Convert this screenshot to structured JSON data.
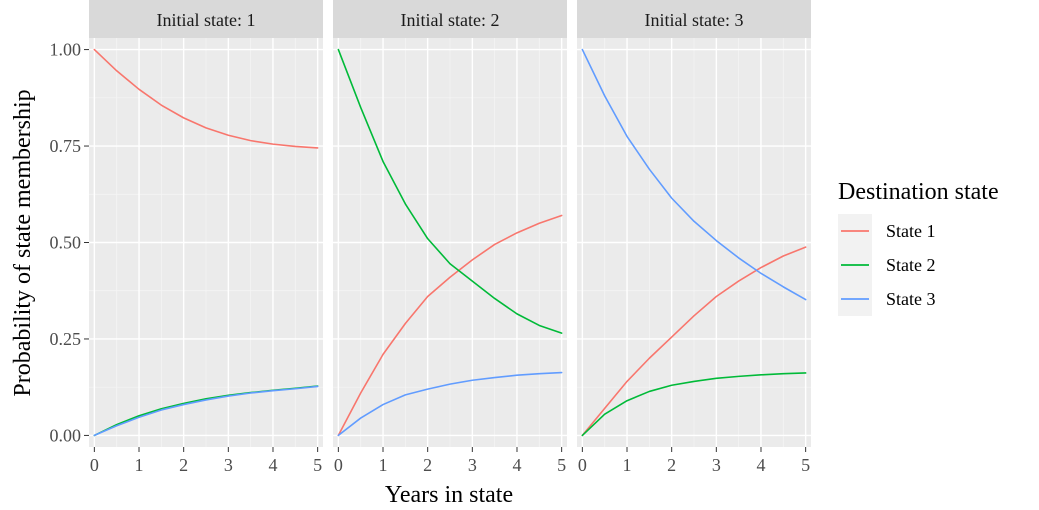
{
  "chart_data": {
    "type": "line",
    "xlabel": "Years in state",
    "ylabel": "Probability of state membership",
    "xlim": [
      -0.12,
      5.12
    ],
    "ylim": [
      -0.03,
      1.03
    ],
    "x_ticks": [
      0,
      1,
      2,
      3,
      4,
      5
    ],
    "y_ticks": [
      0.0,
      0.25,
      0.5,
      0.75,
      1.0
    ],
    "y_tick_labels": [
      "0.00",
      "0.25",
      "0.50",
      "0.75",
      "1.00"
    ],
    "grid": true,
    "legend": {
      "title": "Destination state",
      "position": "right",
      "entries": [
        {
          "name": "State 1",
          "color": "#F8766D"
        },
        {
          "name": "State 2",
          "color": "#00BA38"
        },
        {
          "name": "State 3",
          "color": "#619CFF"
        }
      ]
    },
    "x": [
      0,
      0.5,
      1,
      1.5,
      2,
      2.5,
      3,
      3.5,
      4,
      4.5,
      5
    ],
    "facets": [
      {
        "label": "Initial state: 1",
        "series": [
          {
            "name": "State 1",
            "values": [
              1.0,
              0.945,
              0.897,
              0.856,
              0.823,
              0.797,
              0.778,
              0.764,
              0.755,
              0.749,
              0.745
            ]
          },
          {
            "name": "State 2",
            "values": [
              0.0,
              0.028,
              0.051,
              0.069,
              0.083,
              0.095,
              0.104,
              0.111,
              0.117,
              0.122,
              0.128
            ]
          },
          {
            "name": "State 3",
            "values": [
              0.0,
              0.025,
              0.047,
              0.066,
              0.08,
              0.092,
              0.102,
              0.11,
              0.116,
              0.121,
              0.127
            ]
          }
        ]
      },
      {
        "label": "Initial state: 2",
        "series": [
          {
            "name": "State 1",
            "values": [
              0.0,
              0.11,
              0.21,
              0.29,
              0.36,
              0.41,
              0.455,
              0.495,
              0.525,
              0.55,
              0.57
            ]
          },
          {
            "name": "State 2",
            "values": [
              1.0,
              0.85,
              0.71,
              0.6,
              0.51,
              0.445,
              0.4,
              0.355,
              0.315,
              0.285,
              0.265
            ]
          },
          {
            "name": "State 3",
            "values": [
              0.0,
              0.045,
              0.08,
              0.105,
              0.12,
              0.133,
              0.143,
              0.15,
              0.156,
              0.16,
              0.163
            ]
          }
        ]
      },
      {
        "label": "Initial state: 3",
        "series": [
          {
            "name": "State 1",
            "values": [
              0.0,
              0.07,
              0.14,
              0.2,
              0.255,
              0.31,
              0.36,
              0.4,
              0.435,
              0.465,
              0.488
            ]
          },
          {
            "name": "State 2",
            "values": [
              0.0,
              0.055,
              0.09,
              0.114,
              0.13,
              0.14,
              0.148,
              0.153,
              0.157,
              0.16,
              0.162
            ]
          },
          {
            "name": "State 3",
            "values": [
              1.0,
              0.88,
              0.775,
              0.69,
              0.615,
              0.555,
              0.505,
              0.46,
              0.42,
              0.385,
              0.352
            ]
          }
        ]
      }
    ]
  }
}
